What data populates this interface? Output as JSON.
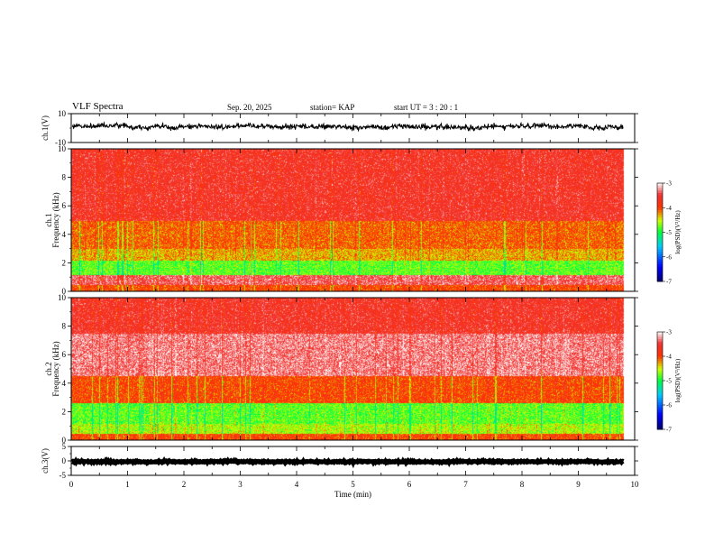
{
  "header": {
    "title": "VLF Spectra",
    "date": "Sep. 20, 2025",
    "station": "station= KAP",
    "start": "start  UT =   3  : 20 : 1"
  },
  "chart_data": [
    {
      "type": "line",
      "panel": "ch1-waveform",
      "ylabel": "ch.1(V)",
      "ylim": [
        -10,
        10
      ],
      "yticks": [
        "10",
        "-10"
      ],
      "xlim": [
        0,
        10
      ],
      "series_range_approx": [
        -3,
        5
      ],
      "series_mean_approx": 1
    },
    {
      "type": "heatmap",
      "panel": "ch1-spectrogram",
      "ylabel": "ch.1 Frequency (kHz)",
      "ylim": [
        0,
        10
      ],
      "yticks": [
        "0",
        "2",
        "4",
        "6",
        "8",
        "10"
      ],
      "xlim": [
        0,
        10
      ],
      "data_end_min": 9.8,
      "bands": [
        {
          "from": 0,
          "to": 0.5,
          "level": -4.0
        },
        {
          "from": 0.5,
          "to": 1.2,
          "level": -3.4
        },
        {
          "from": 1.2,
          "to": 2.2,
          "level": -4.8
        },
        {
          "from": 2.2,
          "to": 3.0,
          "level": -4.3
        },
        {
          "from": 3.0,
          "to": 5.0,
          "level": -4.1
        },
        {
          "from": 5.0,
          "to": 10.0,
          "level": -3.6
        }
      ],
      "colorbar": {
        "label": "log(PSD)(V²/Hz)",
        "min": -7,
        "max": -3,
        "ticks": [
          "-3",
          "-4",
          "-5",
          "-6",
          "-7"
        ]
      }
    },
    {
      "type": "heatmap",
      "panel": "ch2-spectrogram",
      "ylabel": "ch.2 Frequency (kHz)",
      "ylim": [
        0,
        10
      ],
      "yticks": [
        "0",
        "2",
        "4",
        "6",
        "8",
        "10"
      ],
      "xlim": [
        0,
        10
      ],
      "data_end_min": 9.8,
      "bands": [
        {
          "from": 0,
          "to": 0.5,
          "level": -4.0
        },
        {
          "from": 0.5,
          "to": 1.2,
          "level": -4.6
        },
        {
          "from": 1.2,
          "to": 2.6,
          "level": -4.8
        },
        {
          "from": 2.6,
          "to": 4.5,
          "level": -4.0
        },
        {
          "from": 4.5,
          "to": 7.5,
          "level": -3.3
        },
        {
          "from": 7.5,
          "to": 10.0,
          "level": -3.6
        }
      ],
      "colorbar": {
        "label": "log(PSD)(V²/Hz)",
        "min": -7,
        "max": -3,
        "ticks": [
          "-3",
          "-4",
          "-5",
          "-6",
          "-7"
        ]
      }
    },
    {
      "type": "line",
      "panel": "ch3-waveform",
      "ylabel": "ch.3(V)",
      "ylim": [
        -5,
        5
      ],
      "yticks": [
        "5",
        "0",
        "-5"
      ],
      "xlim": [
        0,
        10
      ],
      "series_range_approx": [
        -0.8,
        0.2
      ],
      "series_mean_approx": -0.3
    }
  ],
  "xaxis": {
    "label": "Time  (min)",
    "ticks": [
      "0",
      "1",
      "2",
      "3",
      "4",
      "5",
      "6",
      "7",
      "8",
      "9",
      "10"
    ]
  },
  "colors": {
    "waveform": "#000000",
    "background": "#ffffff"
  }
}
